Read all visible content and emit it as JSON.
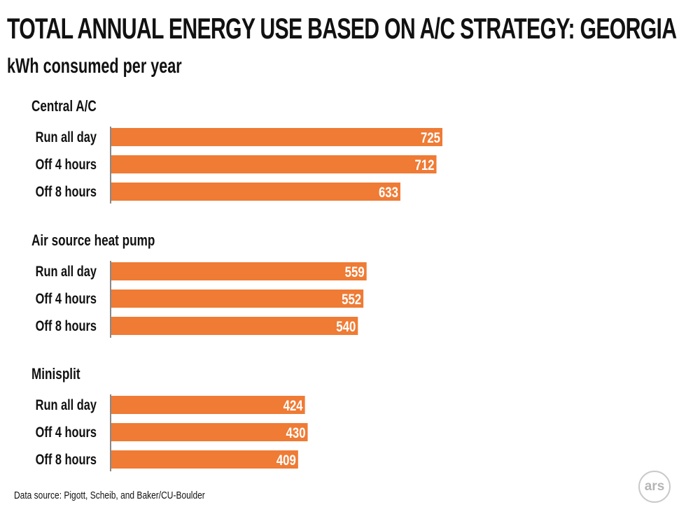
{
  "chart_data": {
    "type": "bar",
    "orientation": "horizontal",
    "title": "TOTAL ANNUAL ENERGY USE BASED ON A/C STRATEGY: GEORGIA",
    "subtitle": "kWh consumed per year",
    "bar_color": "#ef7b34",
    "groups": [
      {
        "name": "Central A/C",
        "categories": [
          "Run all day",
          "Off 4 hours",
          "Off 8 hours"
        ],
        "values": [
          725,
          712,
          633
        ]
      },
      {
        "name": "Air source heat pump",
        "categories": [
          "Run all day",
          "Off 4 hours",
          "Off 8 hours"
        ],
        "values": [
          559,
          552,
          540
        ]
      },
      {
        "name": "Minisplit",
        "categories": [
          "Run all day",
          "Off 4 hours",
          "Off 8 hours"
        ],
        "values": [
          424,
          430,
          409
        ]
      }
    ],
    "xlim": [
      0,
      725
    ]
  },
  "source": "Data source: Pigott, Scheib, and Baker/CU-Boulder",
  "logo_text": "ars"
}
